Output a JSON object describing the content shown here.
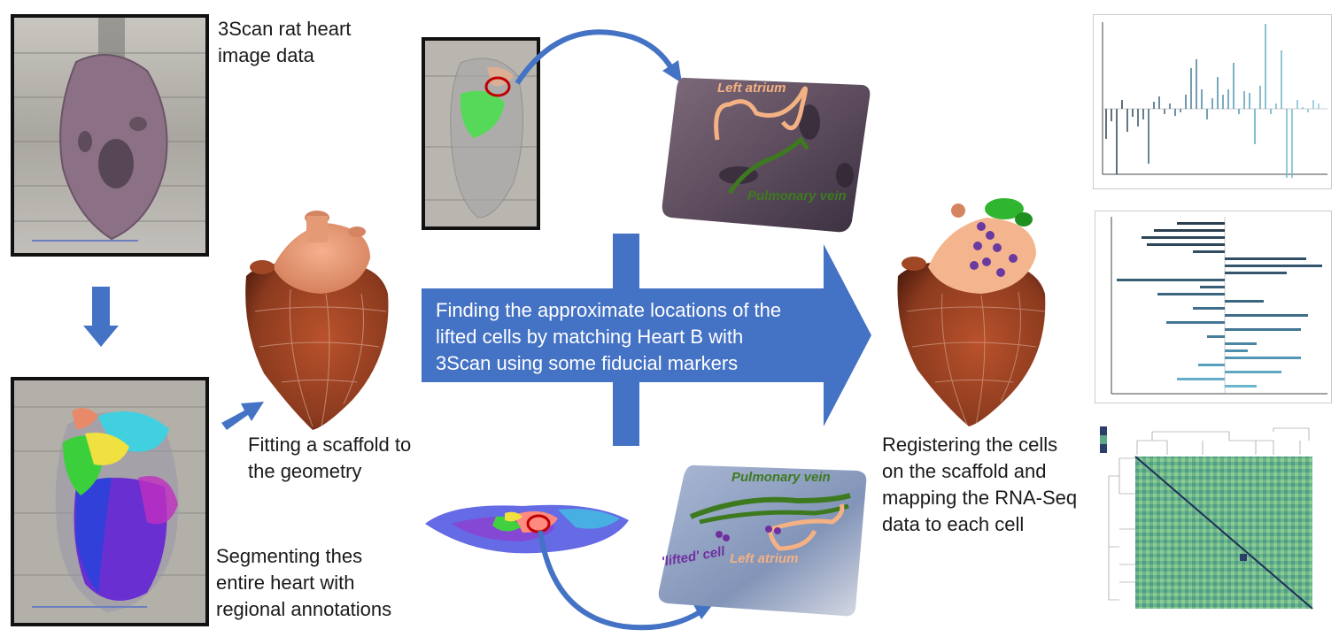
{
  "captions": {
    "rat_heart_image": "3Scan rat heart\nimage data",
    "segmenting": "Segmenting thes\nentire heart with\nregional annotations",
    "fitting": "Fitting a scaffold to\nthe geometry",
    "finding": "Finding the approximate locations of the\nlifted cells by matching Heart B with\n3Scan using some fiducial markers",
    "registering": "Registering the cells\non the scaffold and\nmapping the RNA-Seq\ndata to each cell"
  },
  "annotations": {
    "left_atrium_top": "Left atrium",
    "pulmonary_vein_top": "Pulmonary vein",
    "pulmonary_vein_bottom": "Pulmonary vein",
    "lifted_cell": "'lifted' cell",
    "left_atrium_bottom": "Left atrium"
  },
  "colors": {
    "arrow_blue": "#4472c4",
    "heart_brown": "#8b3a1e",
    "atrium_peach": "#f0a070",
    "pulmonary_green": "#3d7a1f",
    "left_atrium_orange": "#f4b183",
    "lifted_purple": "#7030a0",
    "marker_red": "#c00000"
  },
  "icons": {
    "down_arrow": "down-arrow-icon",
    "small_arrow": "diagonal-arrow-icon",
    "big_arrow": "right-block-arrow-icon",
    "curved_arrow": "curved-arrow-icon"
  }
}
